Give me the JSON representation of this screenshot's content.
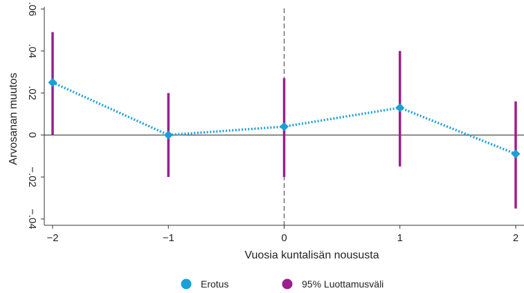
{
  "chart_data": {
    "type": "line",
    "x": [
      -2,
      -1,
      0,
      1,
      2
    ],
    "x_tick_labels": [
      "−2",
      "−1",
      "0",
      "1",
      "2"
    ],
    "y_ticks": [
      -0.04,
      -0.02,
      0,
      0.02,
      0.04,
      0.06
    ],
    "y_tick_labels": [
      "−.04",
      "−.02",
      "0",
      ".02",
      ".04",
      ".06"
    ],
    "xlim": [
      -2,
      2
    ],
    "ylim": [
      -0.043,
      0.061
    ],
    "xlabel": "Vuosia kuntalisän noususta",
    "ylabel": "Arvosanan muutos",
    "reference_lines": {
      "y": 0,
      "x": 0
    },
    "series": [
      {
        "name": "Erotus",
        "kind": "point-estimate",
        "values": [
          0.025,
          0.0,
          0.004,
          0.013,
          -0.009
        ],
        "color": "#1b9fd8"
      },
      {
        "name": "95% Luottamusväli",
        "kind": "confidence-interval",
        "lower": [
          0.0,
          -0.02,
          -0.02,
          -0.015,
          -0.035
        ],
        "upper": [
          0.049,
          0.02,
          0.027,
          0.04,
          0.016
        ],
        "color": "#9b1f8c"
      }
    ],
    "legend_position": "bottom-center",
    "grid": false
  }
}
